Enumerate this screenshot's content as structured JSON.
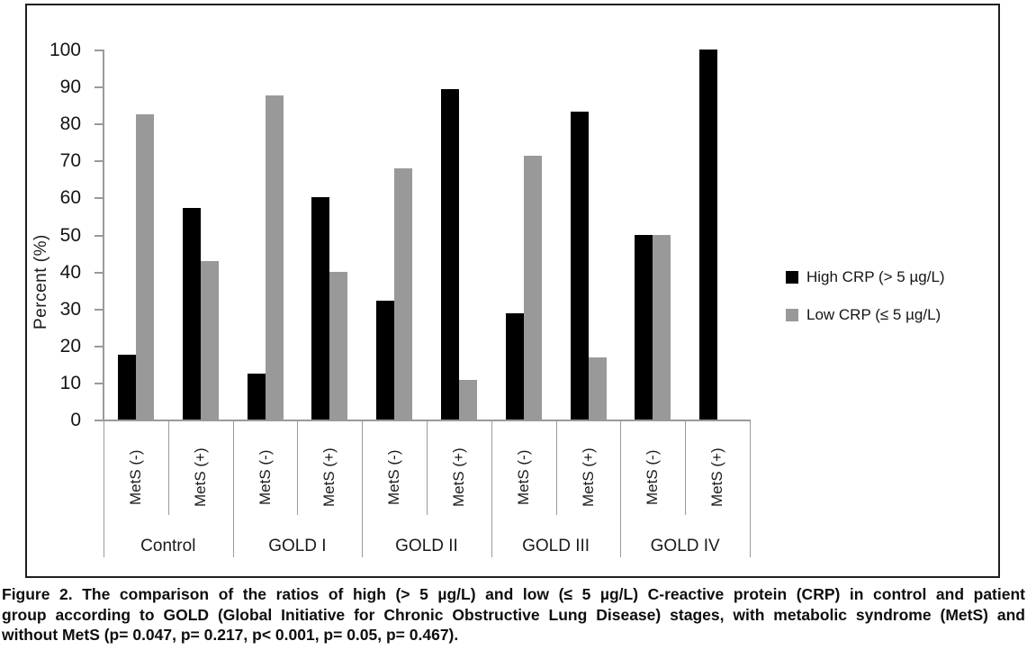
{
  "figure": {
    "caption_lines": [
      "Figure 2. The comparison of the ratios of high (> 5 µg/L) and low (≤ 5 µg/L) C-reactive protein (CRP) in control and patient",
      "group according to GOLD (Global Initiative for Chronic Obstructive Lung Disease) stages, with metabolic syndrome (MetS) and",
      "without MetS (p= 0.047, p= 0.217, p< 0.001, p= 0.05, p= 0.467)."
    ]
  },
  "chart_data": {
    "type": "bar",
    "title": "",
    "xlabel": "",
    "ylabel": "Percent (%)",
    "ylim": [
      0,
      100
    ],
    "yticks": [
      0,
      10,
      20,
      30,
      40,
      50,
      60,
      70,
      80,
      90,
      100
    ],
    "grid": false,
    "legend_position": "right-outside",
    "groups": [
      "Control",
      "GOLD I",
      "GOLD II",
      "GOLD III",
      "GOLD IV"
    ],
    "subgroups": [
      "MetS (-)",
      "MetS (+)"
    ],
    "series": [
      {
        "name": "High CRP (> 5 µg/L)",
        "color": "#000000",
        "values": [
          17.6,
          57.1,
          12.5,
          60.0,
          32.1,
          89.3,
          28.6,
          83.3,
          50.0,
          100.0
        ]
      },
      {
        "name": "Low CRP (≤ 5 µg/L)",
        "color": "#999999",
        "values": [
          82.4,
          42.9,
          87.5,
          40.0,
          67.9,
          10.7,
          71.4,
          16.7,
          50.0,
          0.0
        ]
      }
    ],
    "colors": {
      "axis_line": "#9a9a9a",
      "border": "#1f1f1f",
      "high_crp": "#000000",
      "low_crp": "#999999"
    }
  }
}
